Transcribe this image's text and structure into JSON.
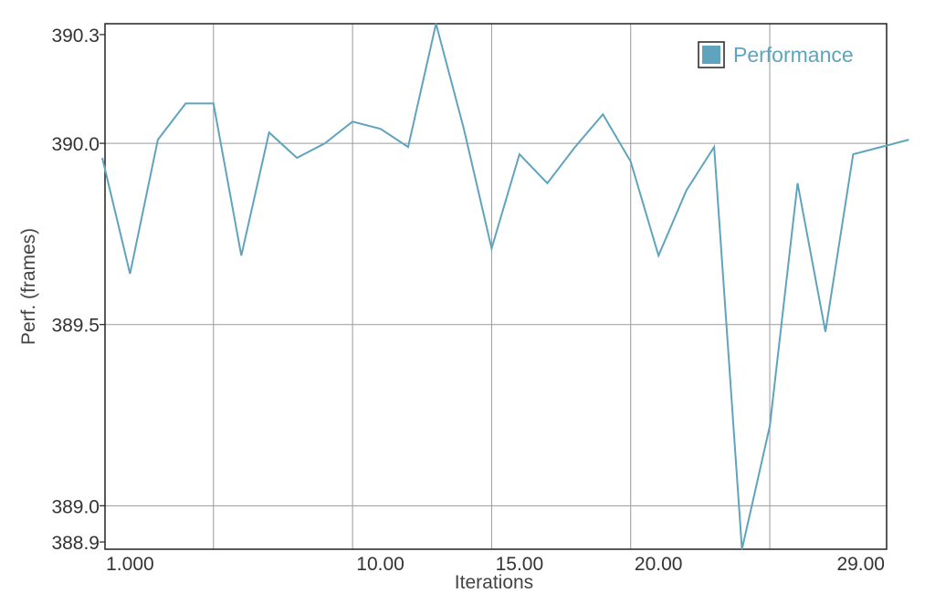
{
  "chart_data": {
    "type": "line",
    "xlabel": "Iterations",
    "ylabel": "Perf. (frames)",
    "xlim": [
      0.1,
      28.2
    ],
    "ylim": [
      388.88,
      390.33
    ],
    "x_ticks": [
      {
        "value": 1,
        "label": "1.000"
      },
      {
        "value": 10,
        "label": "10.00"
      },
      {
        "value": 15,
        "label": "15.00"
      },
      {
        "value": 20,
        "label": "20.00"
      },
      {
        "value": 29,
        "label": "29.00"
      }
    ],
    "x_gridlines": [
      4,
      9,
      14,
      19,
      24
    ],
    "y_ticks": [
      {
        "value": 388.9,
        "label": "388.9",
        "grid": false
      },
      {
        "value": 389.0,
        "label": "389.0",
        "grid": true
      },
      {
        "value": 389.5,
        "label": "389.5",
        "grid": true
      },
      {
        "value": 390.0,
        "label": "390.0",
        "grid": true
      },
      {
        "value": 390.3,
        "label": "390.3",
        "grid": false
      }
    ],
    "legend": {
      "position": "top-right"
    },
    "series": [
      {
        "name": "Performance",
        "color": "#5fa4bc",
        "x": [
          0,
          1,
          2,
          3,
          4,
          5,
          6,
          7,
          8,
          9,
          10,
          11,
          12,
          13,
          14,
          15,
          16,
          17,
          18,
          19,
          20,
          21,
          22,
          23,
          24,
          25,
          26,
          27,
          28,
          29
        ],
        "y": [
          389.96,
          389.64,
          390.01,
          390.11,
          390.11,
          389.69,
          390.03,
          389.96,
          390.0,
          390.06,
          390.04,
          389.99,
          390.33,
          390.04,
          389.71,
          389.97,
          389.89,
          389.99,
          390.08,
          389.95,
          389.69,
          389.87,
          389.99,
          388.88,
          389.22,
          389.89,
          389.48,
          389.97,
          389.99,
          390.01
        ]
      }
    ]
  }
}
